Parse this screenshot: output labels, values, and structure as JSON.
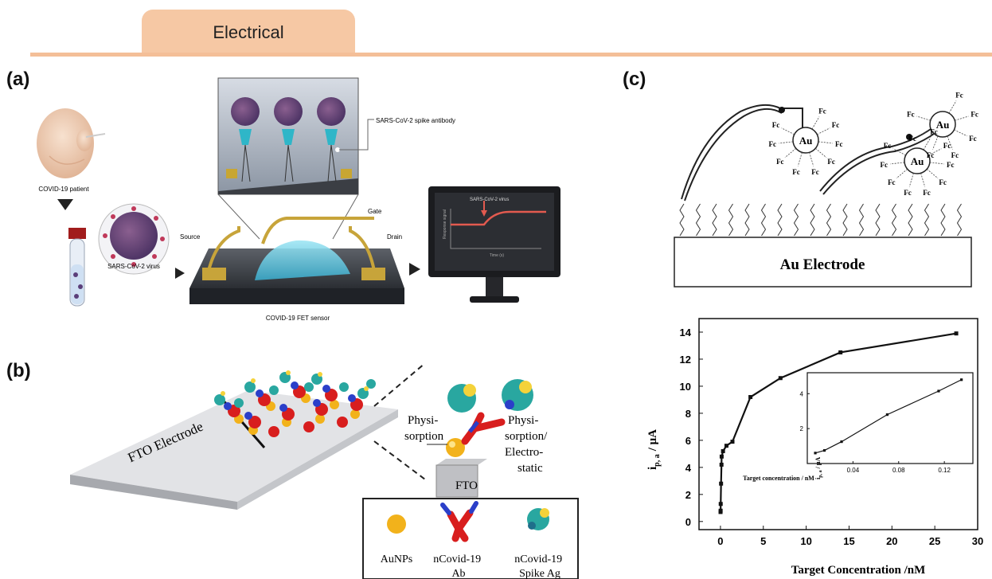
{
  "header": {
    "tab_label": "Electrical"
  },
  "panel_a": {
    "label": "(a)",
    "patient_label": "COVID-19 patient",
    "virus_label": "SARS-CoV-2 virus",
    "antibody_label": "SARS-CoV-2 spike antibody",
    "source_label": "Source",
    "drain_label": "Drain",
    "gate_label": "Gate",
    "sensor_label": "COVID-19 FET sensor",
    "monitor_virus_label": "SARS-CoV-2 virus",
    "monitor_y_label": "Response signal",
    "monitor_x_label": "Time (s)"
  },
  "panel_b": {
    "label": "(b)",
    "electrode_label": "FTO Electrode",
    "fto_label": "FTO",
    "physisorption_left": [
      "Physi-",
      "sorption"
    ],
    "physisorption_right": [
      "Physi-",
      "sorption/",
      "Electro-",
      "static"
    ],
    "legend": [
      {
        "lines": [
          "AuNPs"
        ]
      },
      {
        "lines": [
          "nCovid-19",
          "Ab"
        ]
      },
      {
        "lines": [
          "nCovid-19",
          "Spike Ag"
        ]
      }
    ]
  },
  "panel_c": {
    "label": "(c)",
    "electrode_label": "Au Electrode",
    "np_label": "Au",
    "fc_label": "Fc"
  },
  "colors": {
    "tab": "#f6c8a4",
    "rule": "#f4bf98",
    "gold": "#f2b21b",
    "antibody_red": "#d81e1e",
    "antibody_blue": "#2b3fc9",
    "antigen_teal": "#29a7a0"
  },
  "chart_data": {
    "type": "line",
    "xlabel": "Target Concentration /nM",
    "ylabel": "i",
    "ylabel_sub": "p, a",
    "ylabel_unit": "/ μA",
    "xlim": [
      -2.5,
      30
    ],
    "ylim": [
      -0.6,
      15
    ],
    "xticks": [
      0,
      5,
      10,
      15,
      20,
      25,
      30
    ],
    "yticks": [
      0,
      2,
      4,
      6,
      8,
      10,
      12,
      14
    ],
    "x": [
      0.01,
      0.02,
      0.03,
      0.07,
      0.12,
      0.14,
      0.3,
      0.7,
      1.4,
      3.5,
      7,
      14,
      27.5
    ],
    "y": [
      0.7,
      0.8,
      1.3,
      2.8,
      4.2,
      4.8,
      5.2,
      5.6,
      5.9,
      9.2,
      10.6,
      12.5,
      13.9
    ],
    "inset": {
      "xlabel": "Target concentration / nM",
      "ylabel": "i",
      "ylabel_sub": "p, a",
      "ylabel_unit": "/ μA",
      "xlim": [
        0,
        0.145
      ],
      "ylim": [
        0,
        5.2
      ],
      "xticks": [
        "0.04",
        "0.08",
        "0.12"
      ],
      "xtick_values": [
        0.04,
        0.08,
        0.12
      ],
      "yticks": [
        "2",
        "4"
      ],
      "ytick_values": [
        2,
        4
      ],
      "x": [
        0.007,
        0.015,
        0.03,
        0.07,
        0.115,
        0.135
      ],
      "y": [
        0.6,
        0.75,
        1.25,
        2.8,
        4.15,
        4.8
      ]
    }
  }
}
